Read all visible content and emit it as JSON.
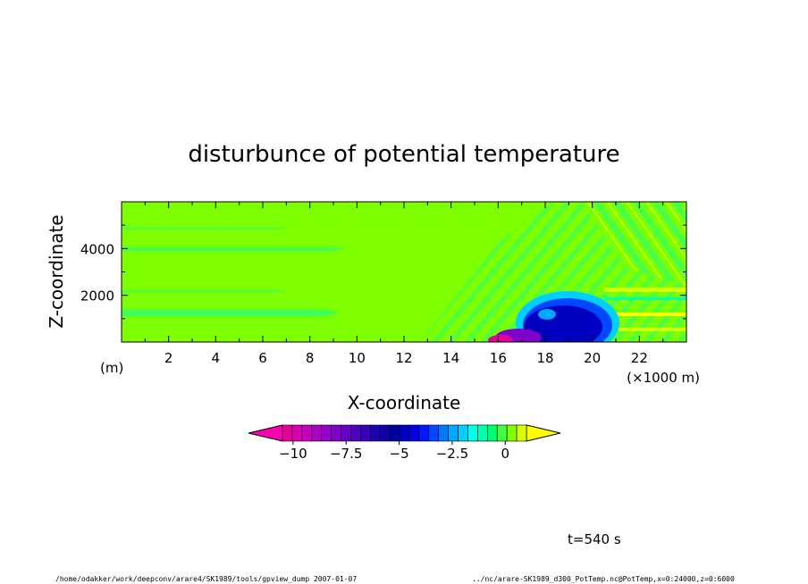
{
  "chart_data": {
    "type": "heatmap",
    "title": "disturbunce of potential temperature",
    "xlabel": "X-coordinate",
    "ylabel": "Z-coordinate",
    "x_unit": "(×1000 m)",
    "y_unit": "(m)",
    "xlim": [
      0,
      24
    ],
    "ylim": [
      0,
      6000
    ],
    "x_ticks": [
      2,
      4,
      6,
      8,
      10,
      12,
      14,
      16,
      18,
      20,
      22
    ],
    "x_tick_labels": [
      "2",
      "4",
      "6",
      "8",
      "10",
      "12",
      "14",
      "16",
      "18",
      "20",
      "22"
    ],
    "y_ticks": [
      2000,
      4000
    ],
    "y_tick_labels": [
      "2000",
      "4000"
    ],
    "colorbar": {
      "min": -10.5,
      "max": 1.0,
      "step": 0.5,
      "tick_values": [
        -10,
        -7.5,
        -5,
        -2.5,
        0
      ],
      "tick_labels": [
        "−10",
        "−7.5",
        "−5",
        "−2.5",
        "0"
      ],
      "extend": "both",
      "colors": [
        "#e8009a",
        "#d800b0",
        "#c800c0",
        "#b000c8",
        "#9800cc",
        "#8000cc",
        "#6800c8",
        "#5000c0",
        "#3800b8",
        "#2000b0",
        "#1000a8",
        "#0000a0",
        "#0000c0",
        "#0000e0",
        "#0018ff",
        "#0048ff",
        "#0078ff",
        "#00a8ff",
        "#00d0ff",
        "#00ffe8",
        "#00ffb0",
        "#00ff70",
        "#40ff40",
        "#80ff00",
        "#d8ff00"
      ],
      "under_color": "#ff00b0",
      "over_color": "#ffff00"
    },
    "regions": [
      {
        "kind": "stripe",
        "x": [
          0,
          7.5
        ],
        "z": [
          4850,
          4900
        ],
        "value": -0.2
      },
      {
        "kind": "stripe",
        "x": [
          0,
          10
        ],
        "z": [
          3900,
          4050
        ],
        "value": -0.2
      },
      {
        "kind": "stripe",
        "x": [
          0,
          7.5
        ],
        "z": [
          2150,
          2200
        ],
        "value": -0.2
      },
      {
        "kind": "stripe",
        "x": [
          0,
          9.7
        ],
        "z": [
          1100,
          1400
        ],
        "value": -0.2
      },
      {
        "kind": "blob",
        "x": [
          15.6,
          21.4
        ],
        "z": [
          0,
          1900
        ],
        "value": -4.5
      },
      {
        "kind": "blob",
        "x": [
          15.4,
          19.2
        ],
        "z": [
          0,
          500
        ],
        "value": -9
      }
    ]
  },
  "footer": {
    "time": "t=540 s",
    "path": "/home/odakker/work/deepconv/arare4/SK1989/tools/gpview_dump  2007-01-07",
    "source": "../nc/arare-SK1989_d300_PotTemp.nc@PotTemp,x=0:24000,z=0:6000"
  }
}
